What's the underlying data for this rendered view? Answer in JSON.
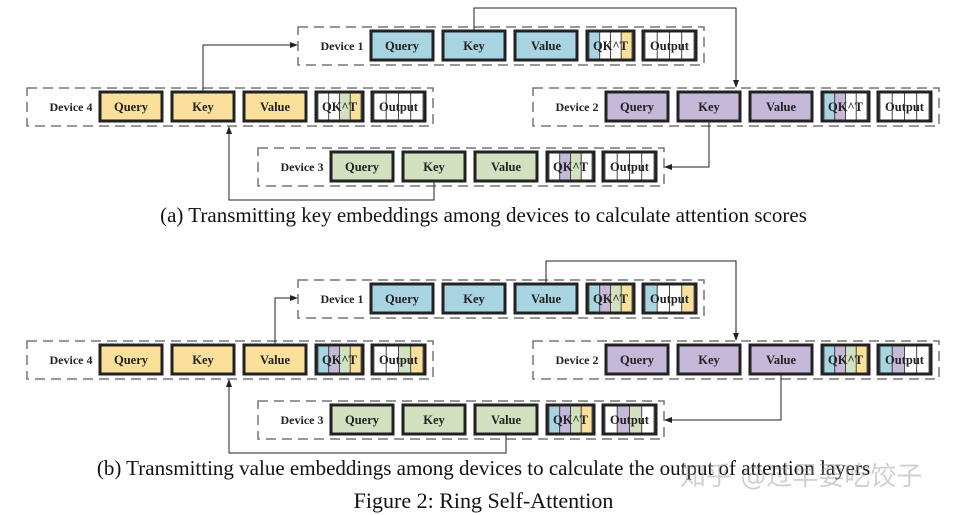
{
  "colors": {
    "device1": "#a9d4e2",
    "device2": "#c5b8d8",
    "device3": "#d2e1bf",
    "device4": "#fbe09b",
    "empty": "#ffffff",
    "border": "#222222",
    "dash": "#777777"
  },
  "block_labels": {
    "query": "Query",
    "key": "Key",
    "value": "Value",
    "qkt": "QK^T",
    "output": "Output"
  },
  "panels": [
    {
      "id": "a",
      "caption": "(a) Transmitting key embeddings among devices to calculate attention scores",
      "transmitted": "key",
      "devices": [
        {
          "label": "Device 1",
          "color": "device1",
          "qkt_stripes": [
            "device1",
            "empty",
            "empty",
            "device4"
          ],
          "output_stripes": [
            "empty",
            "empty",
            "empty",
            "empty"
          ]
        },
        {
          "label": "Device 2",
          "color": "device2",
          "qkt_stripes": [
            "device1",
            "device2",
            "empty",
            "empty"
          ],
          "output_stripes": [
            "empty",
            "empty",
            "empty",
            "empty"
          ]
        },
        {
          "label": "Device 3",
          "color": "device3",
          "qkt_stripes": [
            "empty",
            "device2",
            "device3",
            "empty"
          ],
          "output_stripes": [
            "empty",
            "empty",
            "empty",
            "empty"
          ]
        },
        {
          "label": "Device 4",
          "color": "device4",
          "qkt_stripes": [
            "empty",
            "empty",
            "device3",
            "device4"
          ],
          "output_stripes": [
            "empty",
            "empty",
            "empty",
            "empty"
          ]
        }
      ]
    },
    {
      "id": "b",
      "caption": "(b) Transmitting value embeddings among devices to calculate the output of attention layers",
      "transmitted": "value",
      "devices": [
        {
          "label": "Device 1",
          "color": "device1",
          "qkt_stripes": [
            "device1",
            "device2",
            "device3",
            "device4"
          ],
          "output_stripes": [
            "device1",
            "empty",
            "empty",
            "device4"
          ]
        },
        {
          "label": "Device 2",
          "color": "device2",
          "qkt_stripes": [
            "device1",
            "device2",
            "device3",
            "device4"
          ],
          "output_stripes": [
            "device1",
            "device2",
            "empty",
            "empty"
          ]
        },
        {
          "label": "Device 3",
          "color": "device3",
          "qkt_stripes": [
            "device1",
            "device2",
            "device3",
            "device4"
          ],
          "output_stripes": [
            "empty",
            "device2",
            "device3",
            "empty"
          ]
        },
        {
          "label": "Device 4",
          "color": "device4",
          "qkt_stripes": [
            "device1",
            "device2",
            "device3",
            "device4"
          ],
          "output_stripes": [
            "empty",
            "empty",
            "device3",
            "device4"
          ]
        }
      ]
    }
  ],
  "figure_caption": "Figure 2: Ring Self-Attention",
  "watermark": "知乎 @过早要吃饺子"
}
